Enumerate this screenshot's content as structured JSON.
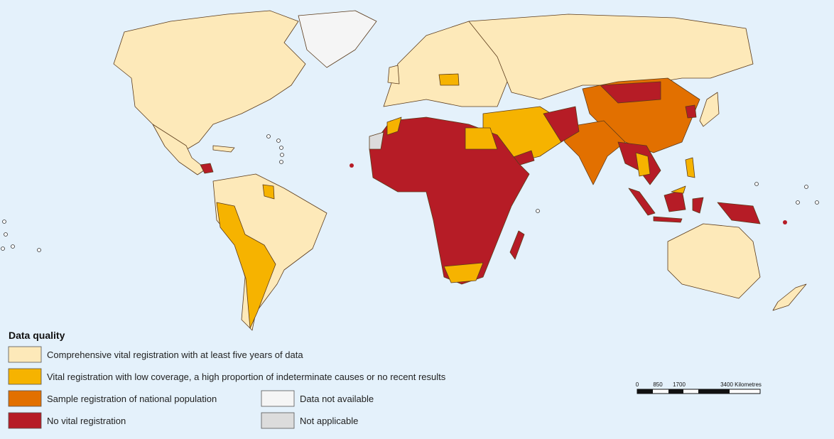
{
  "legend": {
    "title": "Data quality",
    "items": [
      {
        "label": "Comprehensive vital registration with at least five years of data",
        "color": "#fde9b9"
      },
      {
        "label": "Vital registration with low coverage, a high proportion of indeterminate causes or no recent results",
        "color": "#f6b300"
      },
      {
        "label": "Sample registration of national population",
        "color": "#e27000"
      },
      {
        "label": "No vital registration",
        "color": "#b61c26"
      },
      {
        "label": "Data not available",
        "color": "#f5f5f5"
      },
      {
        "label": "Not applicable",
        "color": "#dcdcdc"
      }
    ]
  },
  "scale": {
    "labels": [
      "0",
      "850",
      "1700",
      "3400 Kilometres"
    ]
  }
}
